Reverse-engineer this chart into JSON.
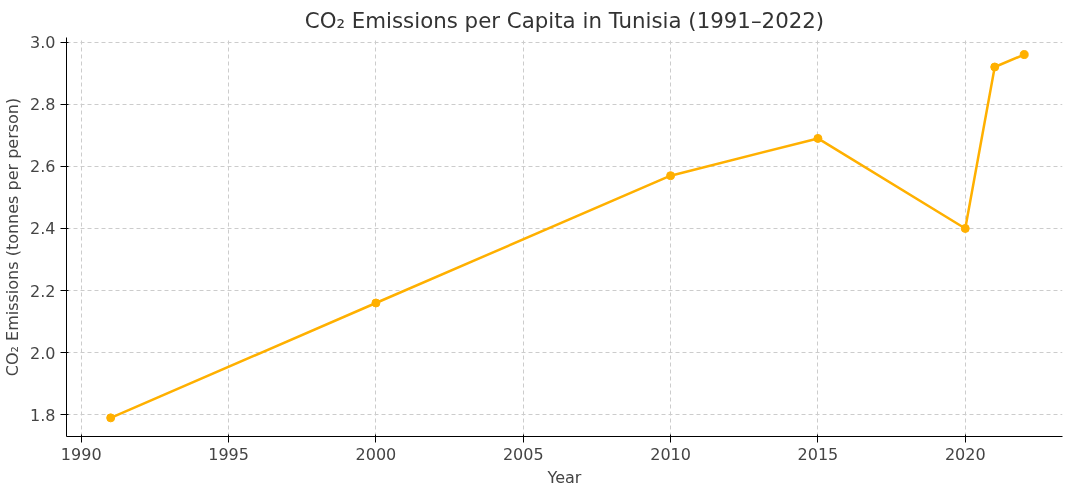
{
  "chart_data": {
    "type": "line",
    "title": "CO₂ Emissions per Capita in Tunisia (1991–2022)",
    "xlabel": "Year",
    "ylabel": "CO₂ Emissions (tonnes per person)",
    "x": [
      1991,
      2000,
      2010,
      2015,
      2020,
      2021,
      2022
    ],
    "series": [
      {
        "color": "#ffb000",
        "values": [
          1.79,
          2.16,
          2.57,
          2.69,
          2.4,
          2.92,
          2.96
        ]
      }
    ],
    "xlim": [
      1989.5,
      2023.3
    ],
    "xticks": [
      1990,
      1995,
      2000,
      2005,
      2010,
      2015,
      2020
    ],
    "ylim": [
      1.73,
      3.015
    ],
    "yticks": [
      {
        "value": 1.8,
        "label": "1.8"
      },
      {
        "value": 2.0,
        "label": "2.0"
      },
      {
        "value": 2.2,
        "label": "2.2"
      },
      {
        "value": 2.4,
        "label": "2.4"
      },
      {
        "value": 2.6,
        "label": "2.6"
      },
      {
        "value": 2.8,
        "label": "2.8"
      },
      {
        "value": 3.0,
        "label": "3.0"
      }
    ],
    "grid": true,
    "marker": "circle",
    "line_style": "solid"
  }
}
